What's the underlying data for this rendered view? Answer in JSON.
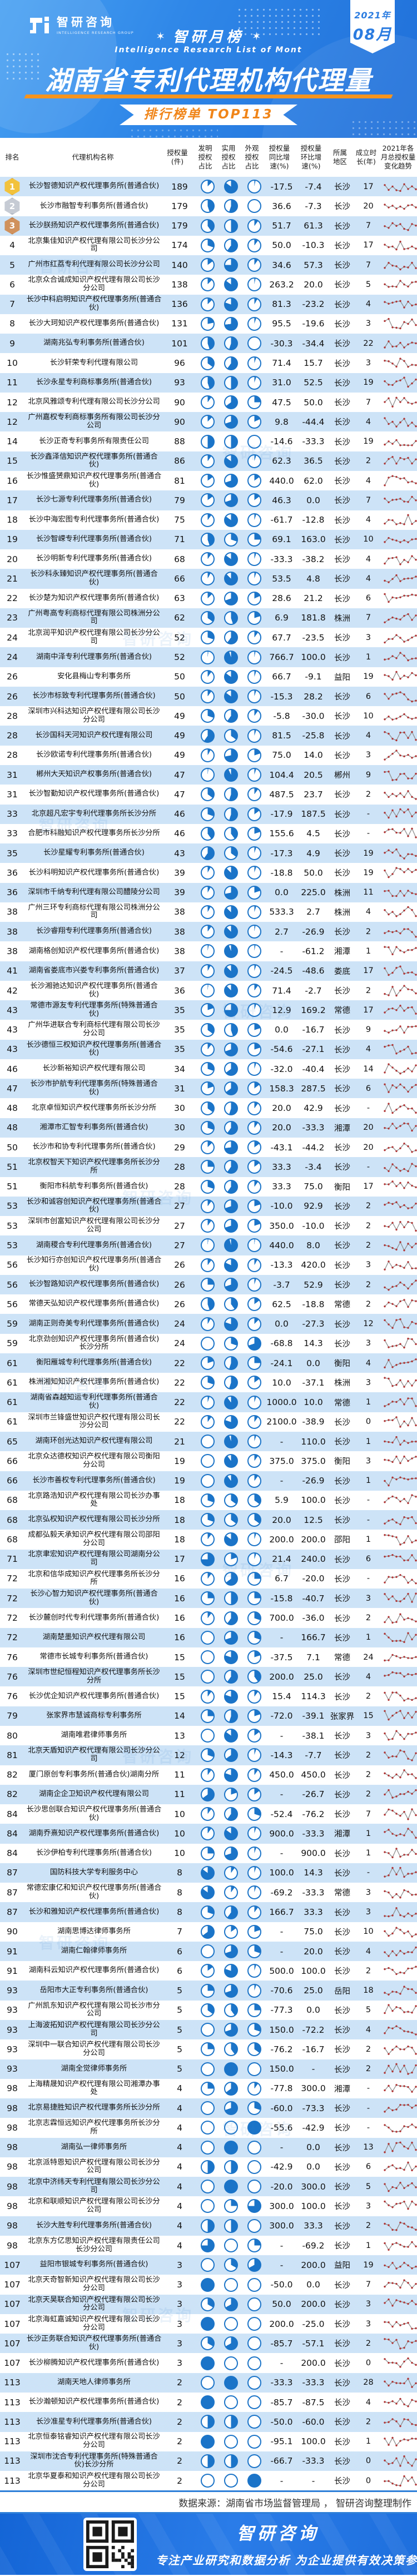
{
  "meta": {
    "brand": "智研咨询",
    "brand_sub": "INTELLIGENCE RESEARCH GROUP",
    "badge_year": "2021年",
    "badge_month": "08月",
    "list_badge": "智研月榜",
    "list_badge_en": "Intelligence Research List of Mont",
    "title": "湖南省专利代理机构代理量",
    "ribbon": "排行榜单 TOP113",
    "watermark": "智研咨询"
  },
  "colors": {
    "banner_blue": "#2f87e8",
    "accent_orange": "#f7941d",
    "ribbon_text_orange": "#f08519",
    "row_alt_blue": "#cde3f7",
    "pie_blue": "#1b74c8",
    "spark_line_gray": "#8f8f8f",
    "spark_dot_red": "#b03434",
    "footer_blue": "#1465d6",
    "divider_blue": "#2e7fd8"
  },
  "table": {
    "headers": [
      "排名",
      "代理机构名称",
      "授权量\n(件)",
      "发明\n授权\n占比",
      "实用\n授权\n占比",
      "外观\n授权\n占比",
      "授权量\n同比增\n速(%)",
      "授权量\n环比增\n速(%)",
      "所属\n地区",
      "成立时\n长(年)",
      "2021年各\n月总授权量\n变化趋势"
    ],
    "col_classes": [
      "col-rank",
      "col-name",
      "col-grants",
      "col-pie",
      "col-pie",
      "col-pie",
      "col-num",
      "col-num",
      "col-region",
      "col-years",
      "col-trend"
    ]
  },
  "rows": [
    [
      "1",
      "长沙智德知识产权代理事务所(普通合伙)",
      "189",
      12,
      85,
      3,
      "-17.5",
      "-7.4",
      "长沙",
      "17"
    ],
    [
      "2",
      "长沙市融智专利事务所(普通合伙)",
      "179",
      45,
      55,
      0,
      "36.6",
      "-7.3",
      "长沙",
      "20"
    ],
    [
      "3",
      "长沙朕扬知识产权代理事务所(普通合伙)",
      "179",
      40,
      50,
      10,
      "51.7",
      "61.3",
      "长沙",
      "7"
    ],
    [
      "4",
      "北京集佳知识产权代理有限公司长沙分公司",
      "174",
      30,
      60,
      10,
      "50.0",
      "-10.3",
      "长沙",
      "17"
    ],
    [
      "5",
      "广州市红荔专利代理有限公司长沙分公司",
      "140",
      15,
      75,
      10,
      "34.6",
      "57.3",
      "长沙",
      "7"
    ],
    [
      "6",
      "北京众合诚成知识产权代理有限公司长沙分公司",
      "138",
      12,
      85,
      3,
      "263.2",
      "20.0",
      "长沙",
      "5"
    ],
    [
      "7",
      "长沙中科启明知识产权代理事务所(普通合伙)",
      "136",
      12,
      80,
      8,
      "81.3",
      "-23.2",
      "长沙",
      "4"
    ],
    [
      "8",
      "长沙大珂知识产权代理事务所(普通合伙)",
      "131",
      22,
      73,
      5,
      "95.5",
      "-19.6",
      "长沙",
      "3"
    ],
    [
      "9",
      "湖南兆弘专利事务所(普通合伙)",
      "101",
      45,
      55,
      0,
      "-30.3",
      "-34.4",
      "长沙",
      "22"
    ],
    [
      "10",
      "长沙轩荣专利代理有限公司",
      "96",
      35,
      60,
      5,
      "71.4",
      "15.7",
      "长沙",
      "3"
    ],
    [
      "11",
      "长沙永星专利商标事务所(普通合伙)",
      "93",
      45,
      50,
      5,
      "31.0",
      "52.5",
      "长沙",
      "19"
    ],
    [
      "12",
      "北京风雅颂专利代理有限公司长沙分公司",
      "90",
      10,
      65,
      25,
      "47.5",
      "50.0",
      "长沙",
      "7"
    ],
    [
      "12",
      "广州嘉权专利商标事务所有限公司长沙分公司",
      "90",
      12,
      70,
      18,
      "9.8",
      "-44.4",
      "长沙",
      "4"
    ],
    [
      "14",
      "长沙正奇专利事务所有限责任公司",
      "88",
      50,
      50,
      0,
      "-14.6",
      "-33.3",
      "长沙",
      "19"
    ],
    [
      "15",
      "长沙鑫泽信知识产权代理事务所(普通合伙)",
      "86",
      10,
      85,
      5,
      "62.3",
      "36.5",
      "长沙",
      "2"
    ],
    [
      "16",
      "长沙惟盛赟鼎知识产权代理事务所(普通合伙)",
      "81",
      15,
      70,
      15,
      "440.0",
      "62.0",
      "长沙",
      "4"
    ],
    [
      "17",
      "长沙七源专利代理事务所(普通合伙)",
      "79",
      15,
      70,
      15,
      "46.3",
      "0.0",
      "长沙",
      "7"
    ],
    [
      "18",
      "长沙中海宏图专利代理事务所(普通合伙)",
      "75",
      10,
      85,
      5,
      "-61.7",
      "-12.8",
      "长沙",
      "4"
    ],
    [
      "19",
      "长沙智嵘专利代理事务所(普通合伙)",
      "71",
      45,
      30,
      25,
      "69.1",
      "163.0",
      "长沙",
      "10"
    ],
    [
      "20",
      "长沙明新专利代理事务所(普通合伙)",
      "68",
      10,
      85,
      5,
      "-33.3",
      "-38.2",
      "长沙",
      "4"
    ],
    [
      "21",
      "长沙科永臻知识产权代理事务所(普通合伙)",
      "66",
      8,
      87,
      5,
      "53.5",
      "4.8",
      "长沙",
      "4"
    ],
    [
      "22",
      "长沙楚为知识产权代理事务所(普通合伙)",
      "63",
      12,
      70,
      18,
      "28.6",
      "21.2",
      "长沙",
      "6"
    ],
    [
      "23",
      "广州粤高专利商标代理有限公司株洲分公司",
      "62",
      35,
      45,
      20,
      "6.9",
      "181.8",
      "株洲",
      "7"
    ],
    [
      "24",
      "北京润平知识产权代理有限公司长沙分公司",
      "52",
      30,
      60,
      10,
      "67.7",
      "-23.5",
      "长沙",
      "3"
    ],
    [
      "24",
      "湖南中泽专利代理事务所(普通合伙)",
      "52",
      2,
      95,
      3,
      "766.7",
      "100.0",
      "长沙",
      "1"
    ],
    [
      "26",
      "安化县梅山专利事务所",
      "50",
      10,
      85,
      5,
      "66.7",
      "-9.1",
      "益阳",
      "19"
    ],
    [
      "26",
      "长沙市标致专利代理事务所(普通合伙)",
      "50",
      10,
      85,
      5,
      "-15.3",
      "28.2",
      "长沙",
      "6"
    ],
    [
      "28",
      "深圳市兴科达知识产权代理有限公司长沙分公司",
      "49",
      30,
      60,
      10,
      "-5.8",
      "-30.0",
      "长沙",
      "10"
    ],
    [
      "28",
      "长沙国科天河知识产权代理有限公司",
      "49",
      60,
      35,
      5,
      "81.5",
      "-25.8",
      "长沙",
      "4"
    ],
    [
      "28",
      "长沙欧诺专利代理事务所(普通合伙)",
      "49",
      8,
      72,
      20,
      "75.0",
      "14.0",
      "长沙",
      "3"
    ],
    [
      "31",
      "郴州大天知识产权事务所(普通合伙)",
      "47",
      2,
      93,
      5,
      "104.4",
      "20.5",
      "郴州",
      "9"
    ],
    [
      "31",
      "长沙智勤知识产权代理事务所(普通合伙)",
      "47",
      35,
      55,
      10,
      "487.5",
      "23.7",
      "长沙",
      "2"
    ],
    [
      "33",
      "北京超凡宏宇专利代理事务所长沙分所",
      "46",
      30,
      55,
      15,
      "-17.9",
      "187.5",
      "长沙",
      "-"
    ],
    [
      "33",
      "合肥市科融知识产权代理事务所长沙分所",
      "46",
      40,
      40,
      20,
      "155.6",
      "4.5",
      "长沙",
      "-"
    ],
    [
      "35",
      "长沙星耀专利事务所(普通合伙)",
      "43",
      60,
      35,
      5,
      "-17.3",
      "4.9",
      "长沙",
      "19"
    ],
    [
      "36",
      "长沙科明知识产权代理事务所(普通合伙)",
      "39",
      8,
      87,
      5,
      "-18.8",
      "50.0",
      "长沙",
      "19"
    ],
    [
      "36",
      "深圳市千纳专利代理有限公司醴陵分公司",
      "39",
      8,
      72,
      20,
      "0.0",
      "225.0",
      "株洲",
      "11"
    ],
    [
      "38",
      "广州三环专利商标代理有限公司株洲分公司",
      "38",
      8,
      87,
      5,
      "533.3",
      "2.7",
      "株洲",
      "4"
    ],
    [
      "38",
      "长沙睿翔专利代理事务所(普通合伙)",
      "38",
      10,
      87,
      3,
      "2.7",
      "-26.9",
      "长沙",
      "2"
    ],
    [
      "38",
      "湖南格创知识产权代理事务所(普通合伙)",
      "38",
      3,
      94,
      3,
      "-",
      "-61.2",
      "湘潭",
      "1"
    ],
    [
      "41",
      "湖南省娄底市兴娄专利事务所(普通合伙)",
      "37",
      8,
      87,
      5,
      "-24.5",
      "-48.6",
      "娄底",
      "17"
    ],
    [
      "42",
      "长沙湘驰达知识产权代理事务所(普通合伙)",
      "36",
      2,
      88,
      10,
      "71.4",
      "-2.7",
      "长沙",
      "2"
    ],
    [
      "43",
      "常德市源友专利代理事务所(特殊普通合伙)",
      "35",
      20,
      75,
      5,
      "12.9",
      "169.2",
      "常德",
      "17"
    ],
    [
      "43",
      "广州华进联合专利商标代理有限公司长沙分公司",
      "35",
      35,
      45,
      20,
      "0.0",
      "-16.7",
      "长沙",
      "9"
    ],
    [
      "43",
      "长沙德恒三权知识产权代理事务所(普通合伙)",
      "35",
      10,
      70,
      20,
      "-54.6",
      "-27.1",
      "长沙",
      "4"
    ],
    [
      "46",
      "长沙新裕知识产权代理有限公司",
      "34",
      30,
      65,
      5,
      "-32.0",
      "-40.4",
      "长沙",
      "14"
    ],
    [
      "47",
      "长沙市护航专利代理事务所(特殊普通合伙)",
      "31",
      20,
      65,
      15,
      "158.3",
      "287.5",
      "长沙",
      "6"
    ],
    [
      "48",
      "北京卓恒知识产权代理事务所长沙分所",
      "30",
      35,
      55,
      10,
      "20.0",
      "42.9",
      "长沙",
      "-"
    ],
    [
      "48",
      "湘潭市汇智专利事务所(普通合伙)",
      "30",
      30,
      60,
      10,
      "20.0",
      "-33.3",
      "湘潭",
      "20"
    ],
    [
      "50",
      "长沙市和协专利代理事务所(普通合伙)",
      "29",
      12,
      73,
      15,
      "-43.1",
      "-44.2",
      "长沙",
      "20"
    ],
    [
      "51",
      "北京权智天下知识产权代理事务所长沙分所",
      "28",
      25,
      60,
      15,
      "33.3",
      "-3.4",
      "长沙",
      "-"
    ],
    [
      "51",
      "衡阳市科航专利事务所(普通合伙)",
      "28",
      30,
      60,
      10,
      "33.3",
      "75.0",
      "衡阳",
      "17"
    ],
    [
      "53",
      "长沙和诚容创知识产权代理事务所(普通合伙)",
      "27",
      10,
      70,
      20,
      "-10.0",
      "92.9",
      "长沙",
      "2"
    ],
    [
      "53",
      "深圳市创富知识产权代理有限公司长沙分公司",
      "27",
      10,
      70,
      20,
      "350.0",
      "-10.0",
      "长沙",
      "2"
    ],
    [
      "53",
      "湖南稷合专利代理事务所(普通合伙)",
      "27",
      2,
      96,
      2,
      "440.0",
      "8.0",
      "长沙",
      "2"
    ],
    [
      "56",
      "长沙知行亦创知识产权代理事务所(普通合伙)",
      "26",
      10,
      82,
      8,
      "-13.3",
      "420.0",
      "长沙",
      "3"
    ],
    [
      "56",
      "长沙智路知识产权代理事务所(普通合伙)",
      "26",
      25,
      70,
      5,
      "-3.7",
      "52.9",
      "长沙",
      "2"
    ],
    [
      "56",
      "常德天弘知识产权代理事务所(普通合伙)",
      "26",
      45,
      40,
      15,
      "62.5",
      "-18.8",
      "常德",
      "2"
    ],
    [
      "59",
      "湖南正则奇美专利代理事务所(普通合伙)",
      "24",
      8,
      80,
      12,
      "0.0",
      "-27.3",
      "长沙",
      "12"
    ],
    [
      "59",
      "北京劲创知识产权代理事务所(普通合伙)长沙分所",
      "24",
      0,
      30,
      70,
      "-68.8",
      "14.3",
      "长沙",
      "3"
    ],
    [
      "61",
      "衡阳雁城专利代理事务所(普通合伙)",
      "22",
      20,
      55,
      25,
      "-24.1",
      "0.0",
      "衡阳",
      "4"
    ],
    [
      "61",
      "株洲湘知知识产权代理事务所(普通合伙)",
      "22",
      30,
      55,
      15,
      "10.0",
      "-37.1",
      "株洲",
      "3"
    ],
    [
      "61",
      "湖南省森越知运专利代理事务所(普通合伙)",
      "22",
      5,
      90,
      5,
      "1000.0",
      "10.0",
      "常德",
      "1"
    ],
    [
      "61",
      "深圳市兰锋盛世知识产权代理有限公司长沙分公司",
      "22",
      10,
      80,
      10,
      "2100.0",
      "-38.9",
      "长沙",
      "0"
    ],
    [
      "65",
      "湖南环创光达知识产权代理有限公司",
      "21",
      0,
      95,
      5,
      "-",
      "110.0",
      "长沙",
      "1"
    ],
    [
      "66",
      "北京众达德权知识产权代理有限公司衡阳分公司",
      "19",
      0,
      90,
      10,
      "375.0",
      "375.0",
      "衡阳",
      "3"
    ],
    [
      "66",
      "长沙市善权专利代理事务所(普通合伙)",
      "19",
      0,
      90,
      10,
      "-",
      "-26.9",
      "长沙",
      "1"
    ],
    [
      "68",
      "北京路浩知识产权代理有限公司长沙办事处",
      "18",
      30,
      35,
      35,
      "5.9",
      "100.0",
      "长沙",
      "-"
    ],
    [
      "68",
      "北京弘权知识产权代理有限公司长沙分所",
      "18",
      30,
      35,
      35,
      "20.0",
      "12.5",
      "长沙",
      "-"
    ],
    [
      "68",
      "成都弘毅天承知识产权代理有限公司邵阳分公司",
      "18",
      10,
      85,
      5,
      "200.0",
      "200.0",
      "邵阳",
      "1"
    ],
    [
      "71",
      "北京聿宏知识产权代理有限公司湖南分公司",
      "17",
      75,
      20,
      5,
      "21.4",
      "240.0",
      "长沙",
      "6"
    ],
    [
      "72",
      "北京和信华成知识产权代理事务所长沙分所",
      "16",
      10,
      65,
      25,
      "6.7",
      "-20.0",
      "长沙",
      "-"
    ],
    [
      "72",
      "长沙心智力知识产权代理事务所(普通合伙)",
      "16",
      25,
      50,
      25,
      "-15.8",
      "-40.7",
      "长沙",
      "3"
    ],
    [
      "72",
      "长沙麓创时代专利代理事务所(普通合伙)",
      "16",
      10,
      60,
      30,
      "700.0",
      "-36.0",
      "长沙",
      "2"
    ],
    [
      "72",
      "湖南楚墨知识产权代理有限公司",
      "16",
      0,
      70,
      30,
      "-",
      "166.7",
      "长沙",
      "1"
    ],
    [
      "76",
      "常德市长城专利事务所(普通合伙)",
      "15",
      0,
      80,
      20,
      "-37.5",
      "7.1",
      "常德",
      "24"
    ],
    [
      "76",
      "深圳市世纪恒程知识产权代理事务所长沙分所",
      "15",
      0,
      60,
      40,
      "200.0",
      "25.0",
      "长沙",
      "4"
    ],
    [
      "76",
      "长沙优企知识产权代理事务所(普通合伙)",
      "15",
      10,
      80,
      10,
      "15.4",
      "114.3",
      "长沙",
      "2"
    ],
    [
      "79",
      "张家界市慧诚商标专利事务所",
      "14",
      25,
      55,
      20,
      "-72.0",
      "-39.1",
      "张家界",
      "15"
    ],
    [
      "80",
      "湖南唯君律师事务所",
      "13",
      0,
      85,
      15,
      "-",
      "-38.1",
      "长沙",
      "3"
    ],
    [
      "81",
      "北京天盾知识产权代理有限公司长沙分公司",
      "12",
      30,
      65,
      5,
      "-14.3",
      "-7.7",
      "长沙",
      "2"
    ],
    [
      "82",
      "厦门原创专利事务所(普通合伙)湖南分所",
      "11",
      10,
      80,
      10,
      "450.0",
      "450.0",
      "长沙",
      "2"
    ],
    [
      "82",
      "湖南企企卫知识产权代理有限公司",
      "11",
      65,
      20,
      15,
      "-",
      "-26.7",
      "长沙",
      "2"
    ],
    [
      "84",
      "长沙思创联合知识产权代理事务所(普通合伙)",
      "10",
      10,
      60,
      30,
      "-52.4",
      "-76.2",
      "长沙",
      "7"
    ],
    [
      "84",
      "湖南乔熹知识产权代理事务所(普通合伙)",
      "10",
      10,
      85,
      5,
      "900.0",
      "-33.3",
      "湘潭",
      "1"
    ],
    [
      "84",
      "长沙伊柏专利代理事务所(普通合伙)",
      "10",
      25,
      70,
      5,
      "-",
      "900.0",
      "长沙",
      "1"
    ],
    [
      "87",
      "国防科技大学专利服务中心",
      "8",
      85,
      10,
      5,
      "100.0",
      "14.3",
      "长沙",
      "-"
    ],
    [
      "87",
      "常德宏康亿和知识产权代理事务所(普通合伙)",
      "8",
      85,
      10,
      5,
      "-69.2",
      "-33.3",
      "常德",
      "3"
    ],
    [
      "87",
      "长沙和雅知识产权代理事务所(普通合伙)",
      "8",
      30,
      60,
      10,
      "166.7",
      "33.3",
      "长沙",
      "3"
    ],
    [
      "90",
      "湖南思博达律师事务所",
      "7",
      65,
      15,
      20,
      "-",
      "75.0",
      "长沙",
      "10"
    ],
    [
      "91",
      "湖南仁翰律师事务所",
      "6",
      0,
      70,
      30,
      "-",
      "20.0",
      "长沙",
      "4"
    ],
    [
      "91",
      "湖南科云知识产权代理事务所(普通合伙)",
      "6",
      15,
      80,
      5,
      "500.0",
      "100.0",
      "长沙",
      "2"
    ],
    [
      "93",
      "岳阳市大正专利事务所(普通合伙)",
      "5",
      25,
      70,
      5,
      "-70.6",
      "25.0",
      "岳阳",
      "18"
    ],
    [
      "93",
      "广州凯东知识产权代理有限公司长沙市分公司",
      "5",
      35,
      40,
      25,
      "-77.3",
      "0.0",
      "长沙",
      "5"
    ],
    [
      "93",
      "上海波拓知识产权代理有限公司长沙分公司",
      "5",
      0,
      70,
      30,
      "150.0",
      "-72.2",
      "长沙",
      "4"
    ],
    [
      "93",
      "深圳中一联合知识产权代理有限公司长沙分公司",
      "5",
      25,
      40,
      35,
      "-76.2",
      "-16.7",
      "长沙",
      "2"
    ],
    [
      "93",
      "湖南全觉律师事务所",
      "5",
      0,
      100,
      0,
      "150.0",
      "-",
      "长沙",
      "2"
    ],
    [
      "98",
      "上海精晟知识产权代理有限公司湘潭办事处",
      "4",
      25,
      65,
      10,
      "-77.8",
      "300.0",
      "湘潭",
      "-"
    ],
    [
      "98",
      "北京易捷胜知识产权代理事务所长沙分所",
      "4",
      0,
      70,
      30,
      "-60.0",
      "-73.3",
      "长沙",
      "-"
    ],
    [
      "98",
      "北京志霖恒远知识产权代理事务所长沙分所",
      "4",
      0,
      0,
      100,
      "-55.6",
      "-42.9",
      "长沙",
      "-"
    ],
    [
      "98",
      "湖南弘一律师事务所",
      "4",
      0,
      100,
      0,
      "-",
      "0.0",
      "长沙",
      "13"
    ],
    [
      "98",
      "北京派特恩知识产权代理有限公司长沙分公司",
      "4",
      50,
      50,
      0,
      "-42.9",
      "0.0",
      "长沙",
      "6"
    ],
    [
      "98",
      "北京中济纬天专利代理有限公司长沙分公司",
      "4",
      0,
      100,
      0,
      "-20.0",
      "300.0",
      "长沙",
      "5"
    ],
    [
      "98",
      "北京和联顺知识产权代理有限公司长沙分公司",
      "4",
      0,
      25,
      75,
      "300.0",
      "100.0",
      "长沙",
      "3"
    ],
    [
      "98",
      "长沙大胜专利代理事务所(普通合伙)",
      "4",
      50,
      50,
      0,
      "300.0",
      "33.3",
      "长沙",
      "2"
    ],
    [
      "98",
      "北京东方亿思知识产权代理有限责任公司长沙分公司",
      "4",
      75,
      0,
      25,
      "-",
      "-69.2",
      "长沙",
      "1"
    ],
    [
      "107",
      "益阳市银城专利事务所(普通合伙)",
      "3",
      0,
      33,
      67,
      "-",
      "200.0",
      "益阳",
      "19"
    ],
    [
      "107",
      "北京天奇智新知识产权代理有限公司长沙分公司",
      "3",
      100,
      0,
      0,
      "-50.0",
      "0.0",
      "长沙",
      "7"
    ],
    [
      "107",
      "北京天昊联合知识产权代理有限公司长沙分公司",
      "3",
      33,
      67,
      0,
      "50.0",
      "200.0",
      "长沙",
      "3"
    ],
    [
      "107",
      "北京海虹嘉诚知识产权代理有限公司长沙分公司",
      "3",
      100,
      0,
      0,
      "200.0",
      "-25.0",
      "长沙",
      "3"
    ],
    [
      "107",
      "长沙正务联合知识产权代理事务所(普通合伙)",
      "3",
      33,
      67,
      0,
      "-85.7",
      "-57.1",
      "长沙",
      "2"
    ],
    [
      "107",
      "长沙柳腾知识产权代理事务所(普通合伙)",
      "3",
      100,
      0,
      0,
      "-",
      "200.0",
      "长沙",
      "0"
    ],
    [
      "113",
      "湖南天地人律师事务所",
      "2",
      0,
      100,
      0,
      "-33.3",
      "-33.3",
      "长沙",
      "28"
    ],
    [
      "113",
      "长沙瀚顿知识产权代理事务所(普通合伙)",
      "2",
      100,
      0,
      0,
      "-85.7",
      "-87.5",
      "长沙",
      "4"
    ],
    [
      "113",
      "长沙准星专利代理事务所(普通合伙)",
      "2",
      50,
      50,
      0,
      "-50.0",
      "-60.0",
      "长沙",
      "2"
    ],
    [
      "113",
      "北京恒泰铭睿知识产权代理有限公司长沙分公司",
      "2",
      100,
      0,
      0,
      "-95.1",
      "100.0",
      "长沙",
      "1"
    ],
    [
      "113",
      "深圳市沈合专利代理事务所(特殊普通合伙)长沙分所",
      "2",
      50,
      50,
      0,
      "-66.7",
      "-33.3",
      "长沙",
      "0"
    ],
    [
      "113",
      "北京华夏泰和知识产权代理有限公司长沙分公司",
      "2",
      0,
      0,
      100,
      "-",
      "-",
      "长沙",
      "0"
    ]
  ],
  "footer": {
    "source": "数据来源：湖南省市场监督管理局 ， 智研咨询整理制作",
    "brand": "智研咨询",
    "slogan": "专注产业研究和数据分析  为企业提供有效决策参考"
  }
}
